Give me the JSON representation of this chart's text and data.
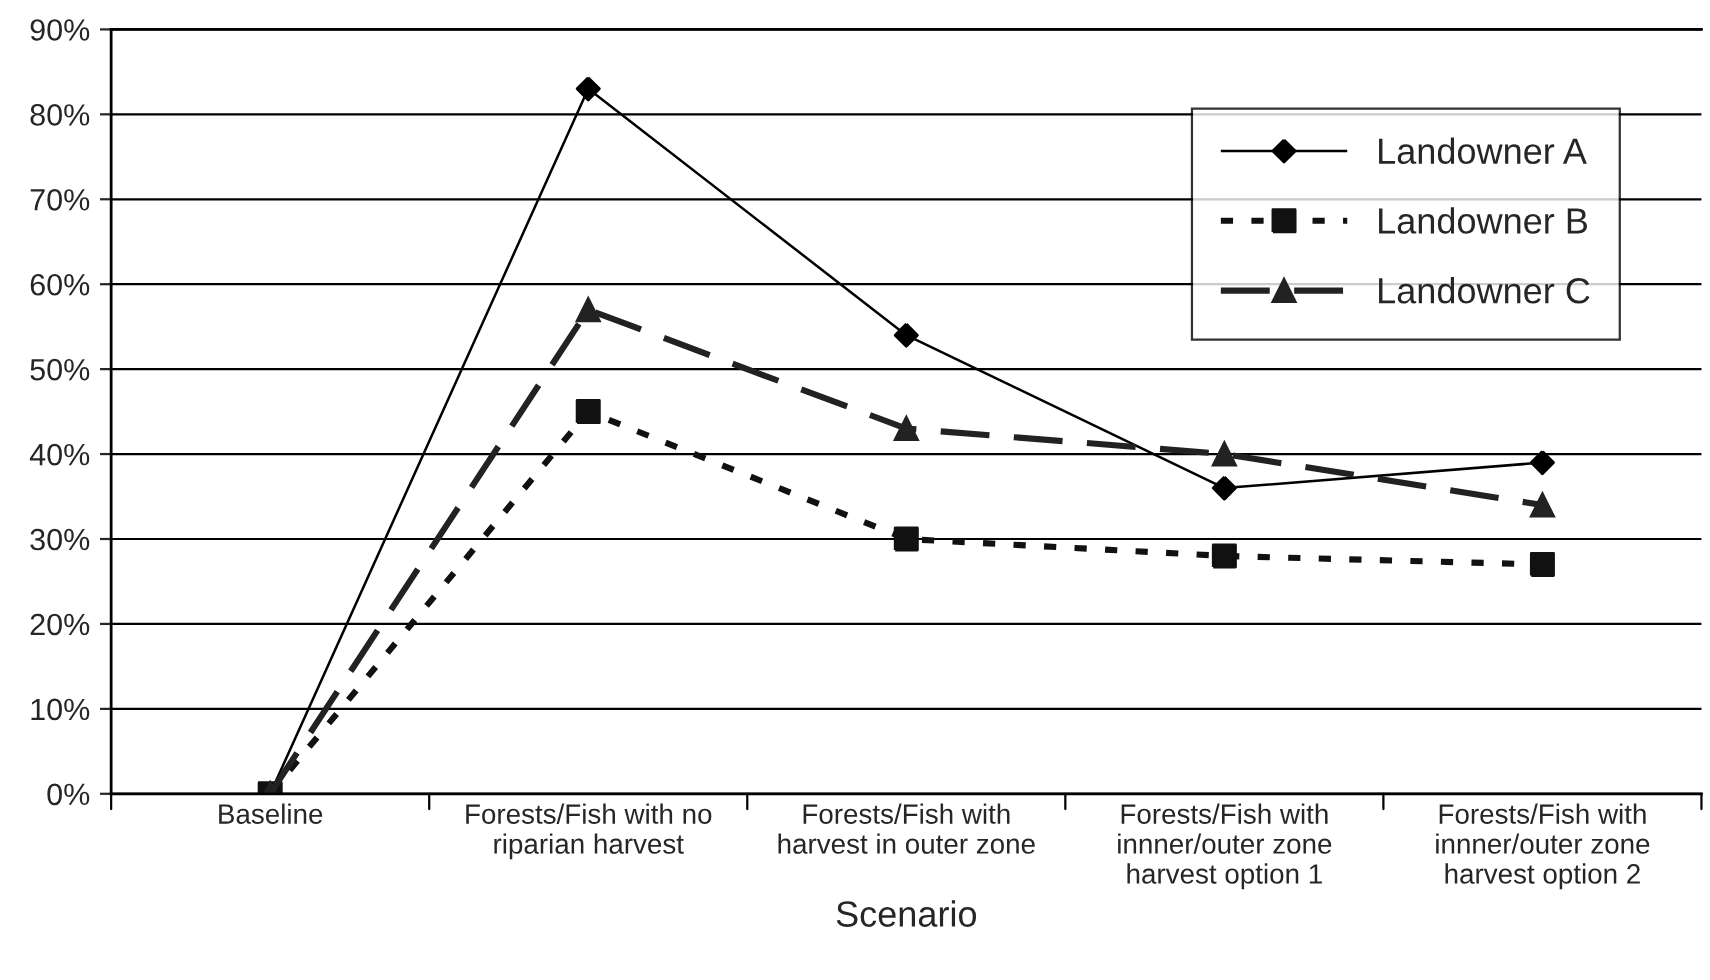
{
  "chart_data": {
    "type": "line",
    "xlabel": "Scenario",
    "categories": [
      "Baseline",
      "Forests/Fish with no\nriparian harvest",
      "Forests/Fish with\nharvest in outer zone",
      "Forests/Fish with\ninnner/outer zone\nharvest option 1",
      "Forests/Fish with\ninnner/outer zone\nharvest option 2"
    ],
    "series": [
      {
        "name": "Landowner A",
        "color": "#000000",
        "marker": "diamond",
        "line_style": "solid",
        "values": [
          0,
          83,
          54,
          36,
          39
        ]
      },
      {
        "name": "Landowner B",
        "color": "#111111",
        "marker": "square",
        "line_style": "dotted",
        "values": [
          0,
          45,
          30,
          28,
          27
        ]
      },
      {
        "name": "Landowner C",
        "color": "#222222",
        "marker": "triangle",
        "line_style": "dashed",
        "values": [
          0,
          57,
          43,
          40,
          34
        ]
      }
    ],
    "ylim": [
      0,
      90
    ],
    "yticks": [
      {
        "value": 0,
        "label": "0%"
      },
      {
        "value": 10,
        "label": "10%"
      },
      {
        "value": 20,
        "label": "20%"
      },
      {
        "value": 30,
        "label": "30%"
      },
      {
        "value": 40,
        "label": "40%"
      },
      {
        "value": 50,
        "label": "50%"
      },
      {
        "value": 60,
        "label": "60%"
      },
      {
        "value": 70,
        "label": "70%"
      },
      {
        "value": 80,
        "label": "80%"
      },
      {
        "value": 90,
        "label": "90%"
      }
    ],
    "grid": "y",
    "legend": "top right"
  }
}
